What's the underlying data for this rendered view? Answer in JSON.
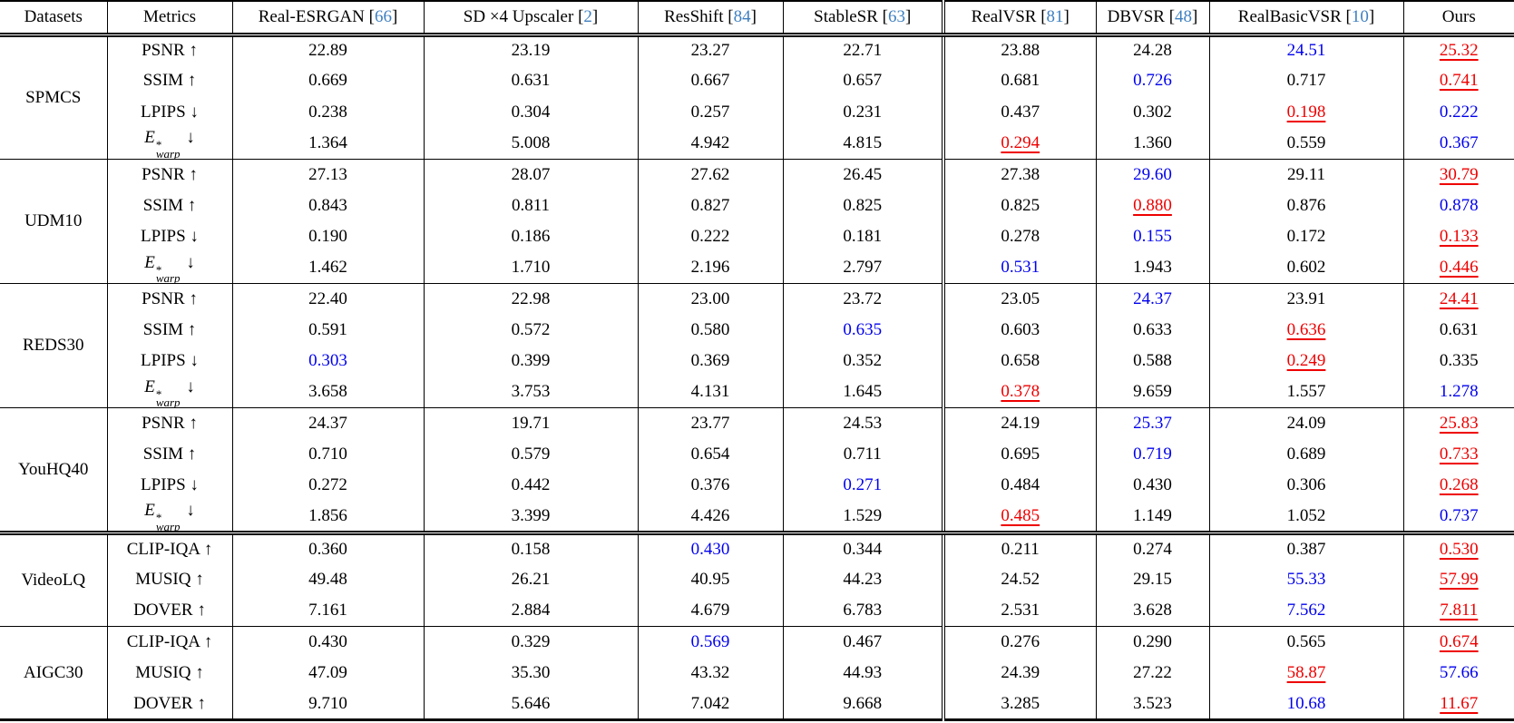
{
  "colors": {
    "text": "#000000",
    "border": "#000000",
    "best_value": "#ee0000",
    "second_best_value": "#0000ee",
    "citation": "#4080c0",
    "background": "#ffffff"
  },
  "table": {
    "header": {
      "datasets": "Datasets",
      "metrics": "Metrics",
      "methods": [
        {
          "name": "Real-ESRGAN",
          "cite": "66"
        },
        {
          "name": "SD ×4 Upscaler",
          "cite": "2"
        },
        {
          "name": "ResShift",
          "cite": "84"
        },
        {
          "name": "StableSR",
          "cite": "63"
        },
        {
          "name": "RealVSR",
          "cite": "81"
        },
        {
          "name": "DBVSR",
          "cite": "48"
        },
        {
          "name": "RealBasicVSR",
          "cite": "10"
        },
        {
          "name": "Ours",
          "cite": null
        }
      ]
    },
    "groups": [
      {
        "dataset": "SPMCS",
        "section_break": false,
        "rows": [
          {
            "metric": {
              "label": "PSNR",
              "arrow": "↑"
            },
            "values": [
              "22.89",
              "23.19",
              "23.27",
              "22.71",
              "23.88",
              "24.28",
              "24.51",
              "25.32"
            ],
            "styles": [
              "p",
              "p",
              "p",
              "p",
              "p",
              "p",
              "b",
              "r"
            ]
          },
          {
            "metric": {
              "label": "SSIM",
              "arrow": "↑"
            },
            "values": [
              "0.669",
              "0.631",
              "0.667",
              "0.657",
              "0.681",
              "0.726",
              "0.717",
              "0.741"
            ],
            "styles": [
              "p",
              "p",
              "p",
              "p",
              "p",
              "b",
              "p",
              "r"
            ]
          },
          {
            "metric": {
              "label": "LPIPS",
              "arrow": "↓"
            },
            "values": [
              "0.238",
              "0.304",
              "0.257",
              "0.231",
              "0.437",
              "0.302",
              "0.198",
              "0.222"
            ],
            "styles": [
              "p",
              "p",
              "p",
              "p",
              "p",
              "p",
              "r",
              "b"
            ]
          },
          {
            "metric": {
              "base": "E",
              "sup": "*",
              "sub": "warp",
              "arrow": "↓"
            },
            "values": [
              "1.364",
              "5.008",
              "4.942",
              "4.815",
              "0.294",
              "1.360",
              "0.559",
              "0.367"
            ],
            "styles": [
              "p",
              "p",
              "p",
              "p",
              "r",
              "p",
              "p",
              "b"
            ]
          }
        ]
      },
      {
        "dataset": "UDM10",
        "section_break": false,
        "rows": [
          {
            "metric": {
              "label": "PSNR",
              "arrow": "↑"
            },
            "values": [
              "27.13",
              "28.07",
              "27.62",
              "26.45",
              "27.38",
              "29.60",
              "29.11",
              "30.79"
            ],
            "styles": [
              "p",
              "p",
              "p",
              "p",
              "p",
              "b",
              "p",
              "r"
            ]
          },
          {
            "metric": {
              "label": "SSIM",
              "arrow": "↑"
            },
            "values": [
              "0.843",
              "0.811",
              "0.827",
              "0.825",
              "0.825",
              "0.880",
              "0.876",
              "0.878"
            ],
            "styles": [
              "p",
              "p",
              "p",
              "p",
              "p",
              "r",
              "p",
              "b"
            ]
          },
          {
            "metric": {
              "label": "LPIPS",
              "arrow": "↓"
            },
            "values": [
              "0.190",
              "0.186",
              "0.222",
              "0.181",
              "0.278",
              "0.155",
              "0.172",
              "0.133"
            ],
            "styles": [
              "p",
              "p",
              "p",
              "p",
              "p",
              "b",
              "p",
              "r"
            ]
          },
          {
            "metric": {
              "base": "E",
              "sup": "*",
              "sub": "warp",
              "arrow": "↓"
            },
            "values": [
              "1.462",
              "1.710",
              "2.196",
              "2.797",
              "0.531",
              "1.943",
              "0.602",
              "0.446"
            ],
            "styles": [
              "p",
              "p",
              "p",
              "p",
              "b",
              "p",
              "p",
              "r"
            ]
          }
        ]
      },
      {
        "dataset": "REDS30",
        "section_break": false,
        "rows": [
          {
            "metric": {
              "label": "PSNR",
              "arrow": "↑"
            },
            "values": [
              "22.40",
              "22.98",
              "23.00",
              "23.72",
              "23.05",
              "24.37",
              "23.91",
              "24.41"
            ],
            "styles": [
              "p",
              "p",
              "p",
              "p",
              "p",
              "b",
              "p",
              "r"
            ]
          },
          {
            "metric": {
              "label": "SSIM",
              "arrow": "↑"
            },
            "values": [
              "0.591",
              "0.572",
              "0.580",
              "0.635",
              "0.603",
              "0.633",
              "0.636",
              "0.631"
            ],
            "styles": [
              "p",
              "p",
              "p",
              "b",
              "p",
              "p",
              "r",
              "p"
            ]
          },
          {
            "metric": {
              "label": "LPIPS",
              "arrow": "↓"
            },
            "values": [
              "0.303",
              "0.399",
              "0.369",
              "0.352",
              "0.658",
              "0.588",
              "0.249",
              "0.335"
            ],
            "styles": [
              "b",
              "p",
              "p",
              "p",
              "p",
              "p",
              "r",
              "p"
            ]
          },
          {
            "metric": {
              "base": "E",
              "sup": "*",
              "sub": "warp",
              "arrow": "↓"
            },
            "values": [
              "3.658",
              "3.753",
              "4.131",
              "1.645",
              "0.378",
              "9.659",
              "1.557",
              "1.278"
            ],
            "styles": [
              "p",
              "p",
              "p",
              "p",
              "r",
              "p",
              "p",
              "b"
            ]
          }
        ]
      },
      {
        "dataset": "YouHQ40",
        "section_break": false,
        "rows": [
          {
            "metric": {
              "label": "PSNR",
              "arrow": "↑"
            },
            "values": [
              "24.37",
              "19.71",
              "23.77",
              "24.53",
              "24.19",
              "25.37",
              "24.09",
              "25.83"
            ],
            "styles": [
              "p",
              "p",
              "p",
              "p",
              "p",
              "b",
              "p",
              "r"
            ]
          },
          {
            "metric": {
              "label": "SSIM",
              "arrow": "↑"
            },
            "values": [
              "0.710",
              "0.579",
              "0.654",
              "0.711",
              "0.695",
              "0.719",
              "0.689",
              "0.733"
            ],
            "styles": [
              "p",
              "p",
              "p",
              "p",
              "p",
              "b",
              "p",
              "r"
            ]
          },
          {
            "metric": {
              "label": "LPIPS",
              "arrow": "↓"
            },
            "values": [
              "0.272",
              "0.442",
              "0.376",
              "0.271",
              "0.484",
              "0.430",
              "0.306",
              "0.268"
            ],
            "styles": [
              "p",
              "p",
              "p",
              "b",
              "p",
              "p",
              "p",
              "r"
            ]
          },
          {
            "metric": {
              "base": "E",
              "sup": "*",
              "sub": "warp",
              "arrow": "↓"
            },
            "values": [
              "1.856",
              "3.399",
              "4.426",
              "1.529",
              "0.485",
              "1.149",
              "1.052",
              "0.737"
            ],
            "styles": [
              "p",
              "p",
              "p",
              "p",
              "r",
              "p",
              "p",
              "b"
            ]
          }
        ]
      },
      {
        "dataset": "VideoLQ",
        "section_break": true,
        "rows": [
          {
            "metric": {
              "label": "CLIP-IQA",
              "arrow": "↑"
            },
            "values": [
              "0.360",
              "0.158",
              "0.430",
              "0.344",
              "0.211",
              "0.274",
              "0.387",
              "0.530"
            ],
            "styles": [
              "p",
              "p",
              "b",
              "p",
              "p",
              "p",
              "p",
              "r"
            ]
          },
          {
            "metric": {
              "label": "MUSIQ",
              "arrow": "↑"
            },
            "values": [
              "49.48",
              "26.21",
              "40.95",
              "44.23",
              "24.52",
              "29.15",
              "55.33",
              "57.99"
            ],
            "styles": [
              "p",
              "p",
              "p",
              "p",
              "p",
              "p",
              "b",
              "r"
            ]
          },
          {
            "metric": {
              "label": "DOVER",
              "arrow": "↑"
            },
            "values": [
              "7.161",
              "2.884",
              "4.679",
              "6.783",
              "2.531",
              "3.628",
              "7.562",
              "7.811"
            ],
            "styles": [
              "p",
              "p",
              "p",
              "p",
              "p",
              "p",
              "b",
              "r"
            ]
          }
        ]
      },
      {
        "dataset": "AIGC30",
        "section_break": false,
        "rows": [
          {
            "metric": {
              "label": "CLIP-IQA",
              "arrow": "↑"
            },
            "values": [
              "0.430",
              "0.329",
              "0.569",
              "0.467",
              "0.276",
              "0.290",
              "0.565",
              "0.674"
            ],
            "styles": [
              "p",
              "p",
              "b",
              "p",
              "p",
              "p",
              "p",
              "r"
            ]
          },
          {
            "metric": {
              "label": "MUSIQ",
              "arrow": "↑"
            },
            "values": [
              "47.09",
              "35.30",
              "43.32",
              "44.93",
              "24.39",
              "27.22",
              "58.87",
              "57.66"
            ],
            "styles": [
              "p",
              "p",
              "p",
              "p",
              "p",
              "p",
              "r",
              "b"
            ]
          },
          {
            "metric": {
              "label": "DOVER",
              "arrow": "↑"
            },
            "values": [
              "9.710",
              "5.646",
              "7.042",
              "9.668",
              "3.285",
              "3.523",
              "10.68",
              "11.67"
            ],
            "styles": [
              "p",
              "p",
              "p",
              "p",
              "p",
              "p",
              "b",
              "r"
            ]
          }
        ]
      }
    ]
  }
}
